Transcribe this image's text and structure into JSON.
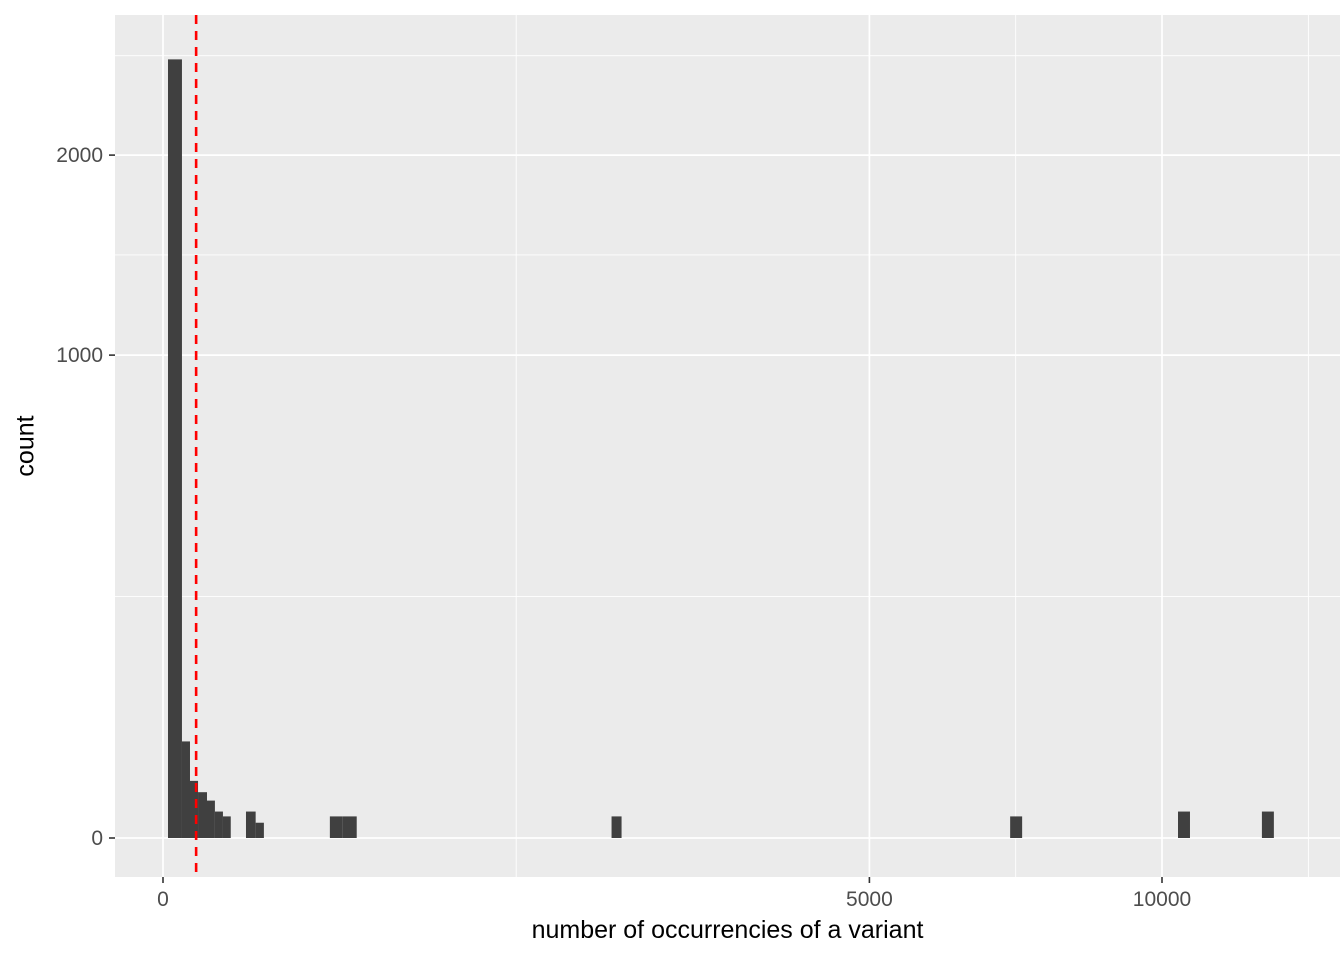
{
  "chart_data": {
    "type": "bar",
    "subtype": "histogram",
    "title": "",
    "xlabel": "number of occurrencies of a variant",
    "ylabel": "count",
    "x_scale": "sqrt",
    "y_scale": "sqrt",
    "x_ticks": [
      0,
      5000,
      10000
    ],
    "x_minor_ticks": [
      1250,
      7285,
      13145
    ],
    "y_ticks": [
      0,
      1000,
      2000
    ],
    "y_minor_ticks": [
      250,
      1458,
      2625
    ],
    "x_range": [
      0,
      13800
    ],
    "y_range": [
      0,
      2900
    ],
    "grid": true,
    "legend": "none",
    "bins": [
      {
        "x0": 0.25,
        "x1": 3.6,
        "count": 2600
      },
      {
        "x0": 3.6,
        "x1": 7.3,
        "count": 40
      },
      {
        "x0": 7.3,
        "x1": 12.3,
        "count": 14
      },
      {
        "x0": 12.3,
        "x1": 19.4,
        "count": 9
      },
      {
        "x0": 19.4,
        "x1": 27,
        "count": 6
      },
      {
        "x0": 27,
        "x1": 36,
        "count": 3
      },
      {
        "x0": 36,
        "x1": 46,
        "count": 2
      },
      {
        "x0": 69,
        "x1": 86,
        "count": 3
      },
      {
        "x0": 86,
        "x1": 102,
        "count": 1
      },
      {
        "x0": 279,
        "x1": 324,
        "count": 2
      },
      {
        "x0": 324,
        "x1": 376,
        "count": 2
      },
      {
        "x0": 2016,
        "x1": 2107,
        "count": 2
      },
      {
        "x0": 7191,
        "x1": 7396,
        "count": 2
      },
      {
        "x0": 10323,
        "x1": 10568,
        "count": 3
      },
      {
        "x0": 12100,
        "x1": 12365,
        "count": 3
      }
    ],
    "reference_line": {
      "orientation": "vertical",
      "x": 11,
      "color": "#FF0000",
      "style": "dashed"
    },
    "colors": {
      "bar": "#404040",
      "panel_background": "#EBEBEB",
      "grid": "#FFFFFF",
      "tick_text": "#4D4D4D",
      "tick_mark": "#333333",
      "axis_title": "#000000"
    }
  }
}
